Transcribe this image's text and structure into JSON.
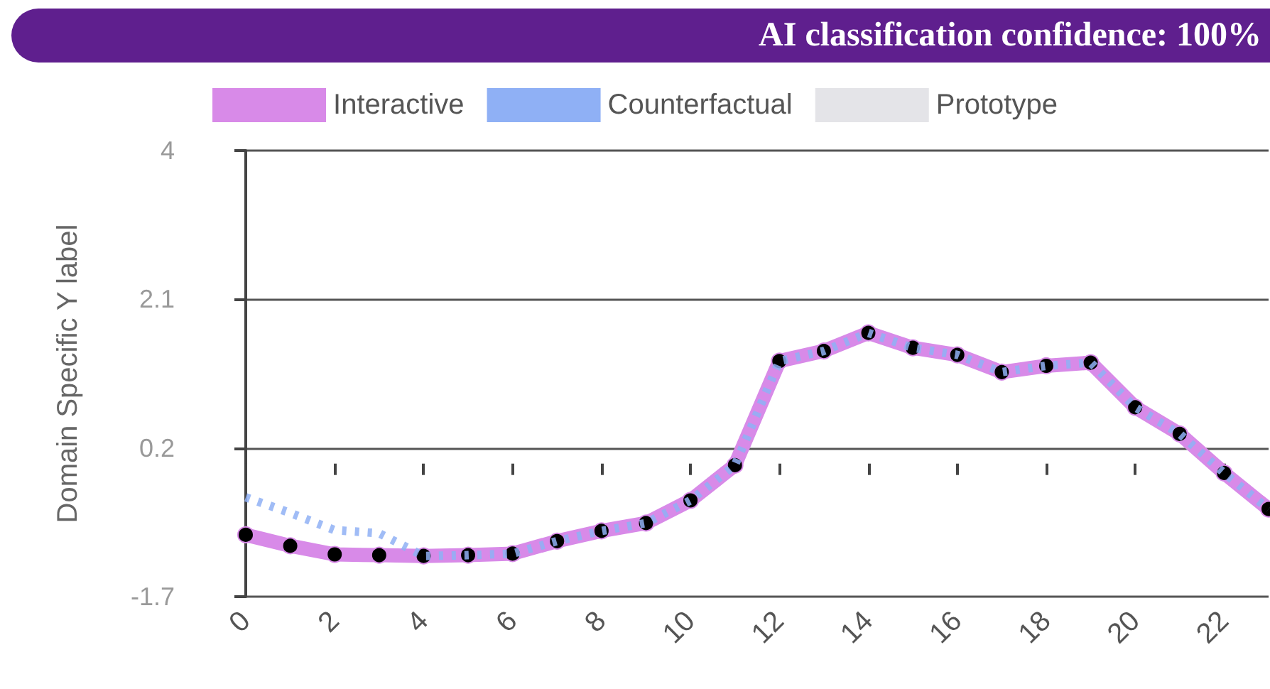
{
  "chart_data": {
    "type": "line",
    "title": "AI classification confidence: 100%",
    "ylabel": "Domain Specific Y label",
    "x": [
      0,
      1,
      2,
      3,
      4,
      5,
      6,
      7,
      8,
      9,
      10,
      11,
      12,
      13,
      14,
      15,
      16,
      17,
      18,
      19,
      20,
      21,
      22,
      23
    ],
    "series": [
      {
        "name": "Interactive",
        "color": "#d88ae8",
        "marker": "circle",
        "line_style": "solid",
        "values": [
          -0.91,
          -1.05,
          -1.16,
          -1.17,
          -1.18,
          -1.17,
          -1.15,
          -0.99,
          -0.86,
          -0.76,
          -0.47,
          -0.02,
          1.31,
          1.44,
          1.67,
          1.48,
          1.39,
          1.17,
          1.25,
          1.29,
          0.72,
          0.38,
          -0.12,
          -0.58
        ]
      },
      {
        "name": "Counterfactual",
        "color": "#8fb0f5",
        "marker": "none",
        "line_style": "dotted",
        "values": [
          -0.43,
          -0.63,
          -0.85,
          -0.89,
          -1.18,
          -1.17,
          -1.15,
          -0.99,
          -0.86,
          -0.76,
          -0.47,
          -0.02,
          1.31,
          1.44,
          1.67,
          1.48,
          1.39,
          1.17,
          1.25,
          1.29,
          0.72,
          0.38,
          -0.12,
          -0.58
        ]
      },
      {
        "name": "Prototype",
        "color": "#e4e4e8",
        "marker": "none",
        "line_style": "solid",
        "values": [
          null,
          null,
          null,
          null,
          null,
          null,
          null,
          null,
          null,
          null,
          null,
          null,
          null,
          null,
          null,
          null,
          null,
          null,
          null,
          null,
          null,
          null,
          null,
          null
        ]
      }
    ],
    "xlim": [
      0,
      23
    ],
    "xticks": [
      0,
      2,
      4,
      6,
      8,
      10,
      12,
      14,
      16,
      18,
      20,
      22
    ],
    "ylim": [
      -1.7,
      4
    ],
    "yticks": [
      -1.7,
      0.2,
      2.1,
      4
    ],
    "grid": "y",
    "legend": "top"
  }
}
